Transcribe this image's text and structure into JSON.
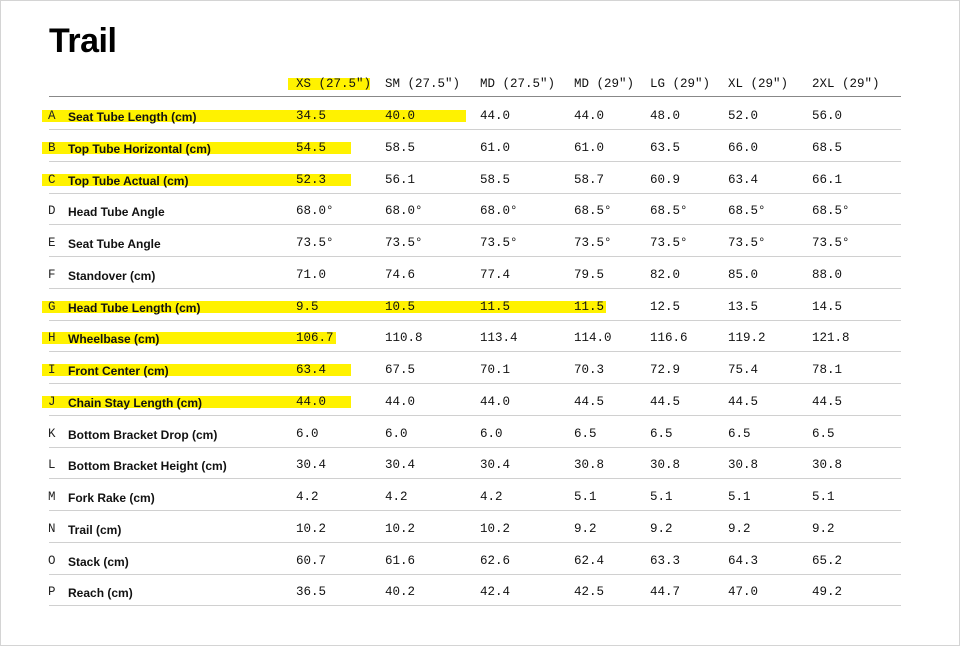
{
  "title": "Trail",
  "highlight_color": "#fff200",
  "columns": [
    "XS (27.5\")",
    "SM (27.5\")",
    "MD (27.5\")",
    "MD (29\")",
    "LG (29\")",
    "XL (29\")",
    "2XL (29\")"
  ],
  "rows": [
    {
      "letter": "A",
      "label": "Seat Tube Length (cm)",
      "values": [
        "34.5",
        "40.0",
        "44.0",
        "44.0",
        "48.0",
        "52.0",
        "56.0"
      ],
      "highlighted_through_column": 1
    },
    {
      "letter": "B",
      "label": "Top Tube Horizontal (cm)",
      "values": [
        "54.5",
        "58.5",
        "61.0",
        "61.0",
        "63.5",
        "66.0",
        "68.5"
      ],
      "highlighted_through_column": 0
    },
    {
      "letter": "C",
      "label": "Top Tube Actual (cm)",
      "values": [
        "52.3",
        "56.1",
        "58.5",
        "58.7",
        "60.9",
        "63.4",
        "66.1"
      ],
      "highlighted_through_column": 0
    },
    {
      "letter": "D",
      "label": "Head Tube Angle",
      "values": [
        "68.0°",
        "68.0°",
        "68.0°",
        "68.5°",
        "68.5°",
        "68.5°",
        "68.5°"
      ],
      "highlighted_through_column": null
    },
    {
      "letter": "E",
      "label": "Seat Tube Angle",
      "values": [
        "73.5°",
        "73.5°",
        "73.5°",
        "73.5°",
        "73.5°",
        "73.5°",
        "73.5°"
      ],
      "highlighted_through_column": null
    },
    {
      "letter": "F",
      "label": "Standover (cm)",
      "values": [
        "71.0",
        "74.6",
        "77.4",
        "79.5",
        "82.0",
        "85.0",
        "88.0"
      ],
      "highlighted_through_column": null
    },
    {
      "letter": "G",
      "label": "Head Tube Length (cm)",
      "values": [
        "9.5",
        "10.5",
        "11.5",
        "11.5",
        "12.5",
        "13.5",
        "14.5"
      ],
      "highlighted_through_column": 3
    },
    {
      "letter": "H",
      "label": "Wheelbase (cm)",
      "values": [
        "106.7",
        "110.8",
        "113.4",
        "114.0",
        "116.6",
        "119.2",
        "121.8"
      ],
      "highlighted_through_column": 0
    },
    {
      "letter": "I",
      "label": "Front Center (cm)",
      "values": [
        "63.4",
        "67.5",
        "70.1",
        "70.3",
        "72.9",
        "75.4",
        "78.1"
      ],
      "highlighted_through_column": 0
    },
    {
      "letter": "J",
      "label": "Chain Stay Length (cm)",
      "values": [
        "44.0",
        "44.0",
        "44.0",
        "44.5",
        "44.5",
        "44.5",
        "44.5"
      ],
      "highlighted_through_column": 0
    },
    {
      "letter": "K",
      "label": "Bottom Bracket Drop (cm)",
      "values": [
        "6.0",
        "6.0",
        "6.0",
        "6.5",
        "6.5",
        "6.5",
        "6.5"
      ],
      "highlighted_through_column": null
    },
    {
      "letter": "L",
      "label": "Bottom Bracket Height (cm)",
      "values": [
        "30.4",
        "30.4",
        "30.4",
        "30.8",
        "30.8",
        "30.8",
        "30.8"
      ],
      "highlighted_through_column": null
    },
    {
      "letter": "M",
      "label": "Fork Rake (cm)",
      "values": [
        "4.2",
        "4.2",
        "4.2",
        "5.1",
        "5.1",
        "5.1",
        "5.1"
      ],
      "highlighted_through_column": null
    },
    {
      "letter": "N",
      "label": "Trail (cm)",
      "values": [
        "10.2",
        "10.2",
        "10.2",
        "9.2",
        "9.2",
        "9.2",
        "9.2"
      ],
      "highlighted_through_column": null
    },
    {
      "letter": "O",
      "label": "Stack (cm)",
      "values": [
        "60.7",
        "61.6",
        "62.6",
        "62.4",
        "63.3",
        "64.3",
        "65.2"
      ],
      "highlighted_through_column": null
    },
    {
      "letter": "P",
      "label": "Reach (cm)",
      "values": [
        "36.5",
        "40.2",
        "42.4",
        "42.5",
        "44.7",
        "47.0",
        "49.2"
      ],
      "highlighted_through_column": null
    }
  ]
}
